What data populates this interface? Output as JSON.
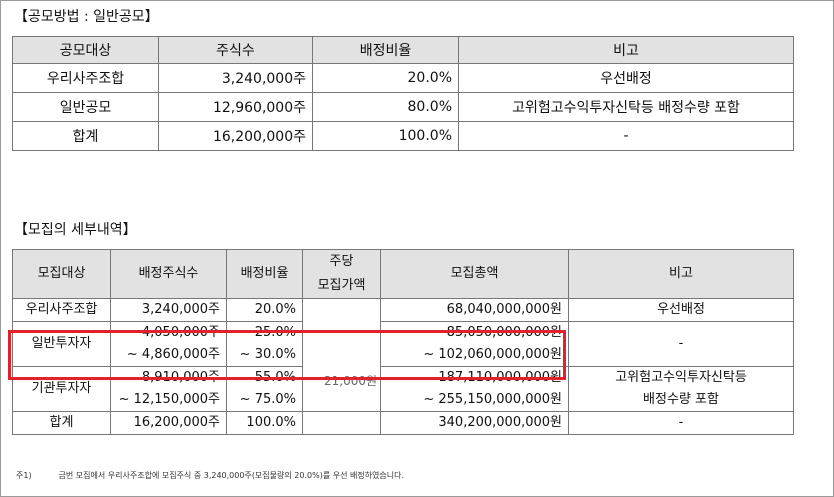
{
  "section1": {
    "title": "【공모방법 : 일반공모】",
    "headers": [
      "공모대상",
      "주식수",
      "배정비율",
      "비고"
    ],
    "rows": [
      [
        "우리사주조합",
        "3,240,000주",
        "20.0%",
        "우선배정"
      ],
      [
        "일반공모",
        "12,960,000주",
        "80.0%",
        "고위험고수익투자신탁등 배정수량 포함"
      ],
      [
        "합계",
        "16,200,000주",
        "100.0%",
        "-"
      ]
    ]
  },
  "section2": {
    "title": "【모집의 세부내역】",
    "headers": {
      "target": "모집대상",
      "shares": "배정주식수",
      "ratio": "배정비율",
      "price_line1": "주당",
      "price_line2": "모집가액",
      "total": "모집총액",
      "note": "비고"
    },
    "price_value": "21,000원",
    "rows": {
      "employee": {
        "target": "우리사주조합",
        "shares": "3,240,000주",
        "ratio": "20.0%",
        "total": "68,040,000,000원",
        "note": "우선배정"
      },
      "retail": {
        "target": "일반투자자",
        "shares_min": "4,050,000주",
        "shares_max": "~ 4,860,000주",
        "ratio_min": "25.0%",
        "ratio_max": "~ 30.0%",
        "total_min": "85,050,000,000원",
        "total_max": "~ 102,060,000,000원",
        "note": "-"
      },
      "institution": {
        "target": "기관투자자",
        "shares_min": "8,910,000주",
        "shares_max": "~ 12,150,000주",
        "ratio_min": "55.0%",
        "ratio_max": "~ 75.0%",
        "total_min": "187,110,000,000원",
        "total_max": "~ 255,150,000,000원",
        "note_line1": "고위험고수익투자신탁등",
        "note_line2": "배정수량 포함"
      },
      "total": {
        "target": "합계",
        "shares": "16,200,000주",
        "ratio": "100.0%",
        "total": "340,200,000,000원",
        "note": "-"
      }
    }
  },
  "footnote": {
    "label": "주1)",
    "text": "금번 모집에서 우리사주조합에 모집주식 중 3,240,000주(모집물량의 20.0%)를 우선 배정하였습니다."
  },
  "highlight_color": "#e3202c"
}
